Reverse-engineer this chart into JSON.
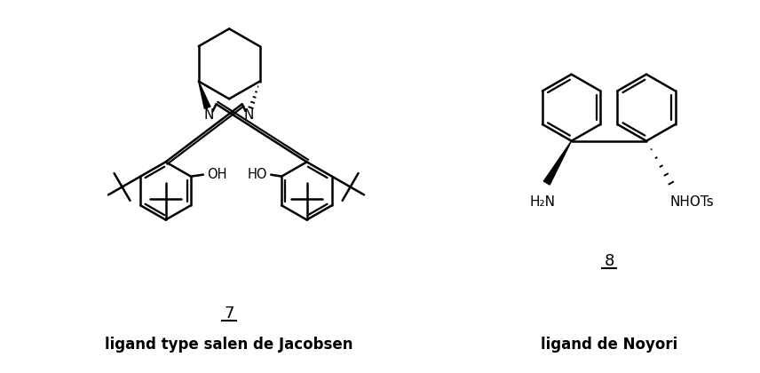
{
  "background_color": "#ffffff",
  "text_color": "#000000",
  "label_left": "ligand type salen de Jacobsen",
  "label_right": "ligand de Noyori",
  "number_left": "7",
  "number_right": "8",
  "figsize": [
    8.56,
    4.2
  ],
  "dpi": 100
}
